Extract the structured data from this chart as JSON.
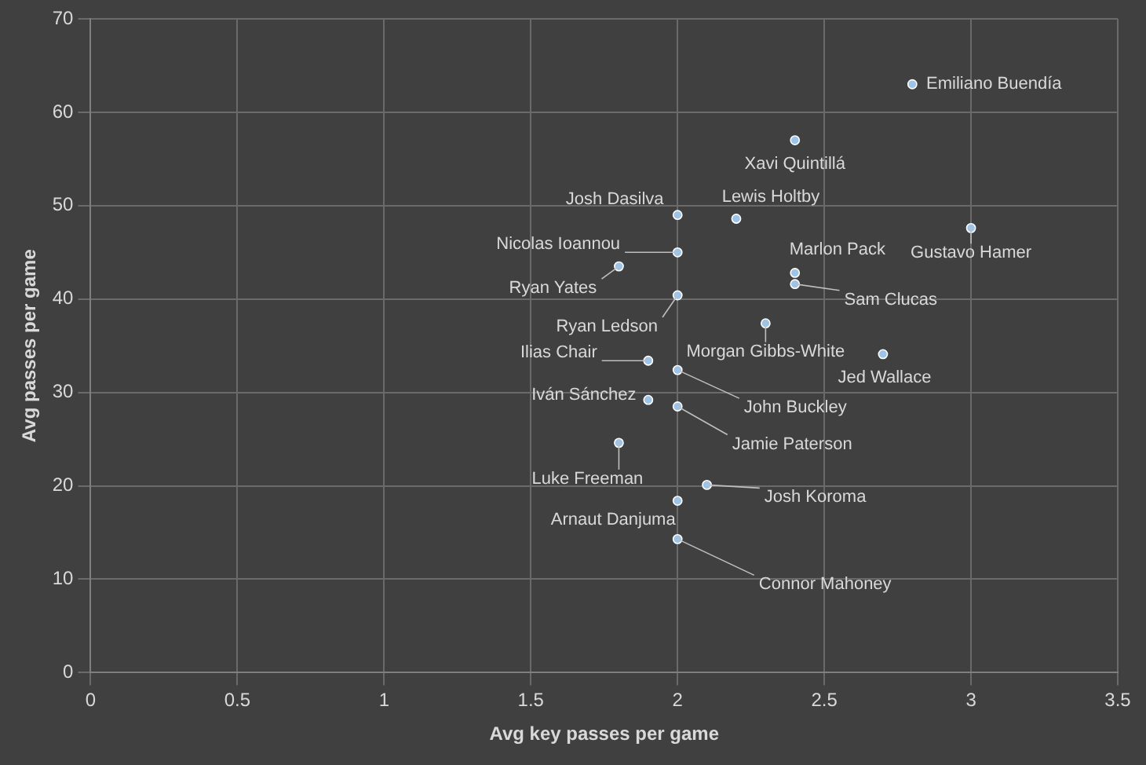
{
  "chart_data": {
    "type": "scatter",
    "xlabel": "Avg key passes per game",
    "ylabel": "Avg passes per game",
    "x": [
      2.8,
      2.4,
      2.0,
      2.2,
      3.0,
      2.0,
      1.8,
      2.4,
      2.4,
      2.0,
      2.3,
      2.7,
      1.9,
      2.0,
      1.9,
      2.0,
      1.8,
      2.1,
      2.0,
      2.0
    ],
    "series": [
      {
        "color": "#9dc3e6",
        "values": [
          63.0,
          57.0,
          49.0,
          48.6,
          47.6,
          45.0,
          43.5,
          42.8,
          41.6,
          40.4,
          37.4,
          34.1,
          33.4,
          32.4,
          29.2,
          28.5,
          24.6,
          20.1,
          18.4,
          14.3
        ]
      }
    ],
    "xlim": [
      0,
      3.5
    ],
    "xticks": [
      0,
      0.5,
      1,
      1.5,
      2,
      2.5,
      3,
      3.5
    ],
    "ylim": [
      0,
      70
    ],
    "yticks": [
      0,
      10,
      20,
      30,
      40,
      50,
      60,
      70
    ],
    "grid": true,
    "marker": "circle",
    "legend": false,
    "annotations": [
      {
        "text": "Emiliano Buendía",
        "x": 2.8,
        "y": 63.0
      },
      {
        "text": "Xavi Quintillá",
        "x": 2.4,
        "y": 57.0
      },
      {
        "text": "Josh Dasilva",
        "x": 2.0,
        "y": 49.0
      },
      {
        "text": "Lewis Holtby",
        "x": 2.2,
        "y": 48.6
      },
      {
        "text": "Gustavo Hamer",
        "x": 3.0,
        "y": 47.6
      },
      {
        "text": "Nicolas Ioannou",
        "x": 2.0,
        "y": 45.0
      },
      {
        "text": "Ryan Yates",
        "x": 1.8,
        "y": 43.5
      },
      {
        "text": "Marlon Pack",
        "x": 2.4,
        "y": 42.8
      },
      {
        "text": "Sam Clucas",
        "x": 2.4,
        "y": 41.6
      },
      {
        "text": "Ryan Ledson",
        "x": 2.0,
        "y": 40.4
      },
      {
        "text": "Morgan Gibbs-White",
        "x": 2.3,
        "y": 37.4
      },
      {
        "text": "Jed Wallace",
        "x": 2.7,
        "y": 34.1
      },
      {
        "text": "Ilias Chair",
        "x": 1.9,
        "y": 33.4
      },
      {
        "text": "John Buckley",
        "x": 2.0,
        "y": 32.4
      },
      {
        "text": "Iván Sánchez",
        "x": 1.9,
        "y": 29.2
      },
      {
        "text": "Jamie Paterson",
        "x": 2.0,
        "y": 28.5
      },
      {
        "text": "Luke Freeman",
        "x": 1.8,
        "y": 24.6
      },
      {
        "text": "Josh Koroma",
        "x": 2.1,
        "y": 20.1
      },
      {
        "text": "Arnaut Danjuma",
        "x": 2.0,
        "y": 18.4
      },
      {
        "text": "Connor Mahoney",
        "x": 2.0,
        "y": 14.3
      }
    ]
  }
}
